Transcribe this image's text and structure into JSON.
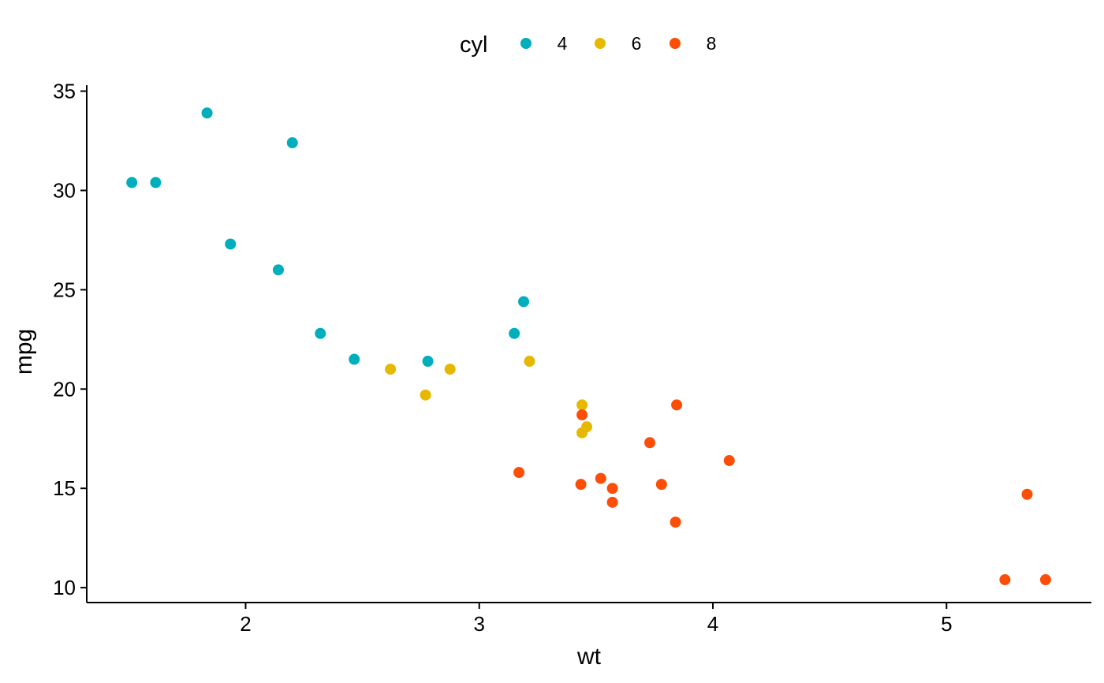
{
  "chart_data": {
    "type": "scatter",
    "xlabel": "wt",
    "ylabel": "mpg",
    "xlim": [
      1.32,
      5.62
    ],
    "ylim": [
      9.25,
      35.3
    ],
    "x_ticks": [
      2,
      3,
      4,
      5
    ],
    "y_ticks": [
      10,
      15,
      20,
      25,
      30,
      35
    ],
    "x_tick_labels": [
      "2",
      "3",
      "4",
      "5"
    ],
    "y_tick_labels": [
      "10",
      "15",
      "20",
      "25",
      "30",
      "35"
    ],
    "grid": false,
    "legend": {
      "title": "cyl",
      "position": "top"
    },
    "series": [
      {
        "name": "4",
        "color": "#00AFBB",
        "points": [
          {
            "x": 2.32,
            "y": 22.8
          },
          {
            "x": 3.19,
            "y": 24.4
          },
          {
            "x": 3.15,
            "y": 22.8
          },
          {
            "x": 2.2,
            "y": 32.4
          },
          {
            "x": 1.615,
            "y": 30.4
          },
          {
            "x": 1.835,
            "y": 33.9
          },
          {
            "x": 2.465,
            "y": 21.5
          },
          {
            "x": 1.935,
            "y": 27.3
          },
          {
            "x": 2.14,
            "y": 26.0
          },
          {
            "x": 1.513,
            "y": 30.4
          },
          {
            "x": 2.78,
            "y": 21.4
          }
        ]
      },
      {
        "name": "6",
        "color": "#E7B800",
        "points": [
          {
            "x": 2.62,
            "y": 21.0
          },
          {
            "x": 2.875,
            "y": 21.0
          },
          {
            "x": 3.215,
            "y": 21.4
          },
          {
            "x": 3.46,
            "y": 18.1
          },
          {
            "x": 3.44,
            "y": 19.2
          },
          {
            "x": 3.44,
            "y": 17.8
          },
          {
            "x": 2.77,
            "y": 19.7
          }
        ]
      },
      {
        "name": "8",
        "color": "#FC4E07",
        "points": [
          {
            "x": 3.44,
            "y": 18.7
          },
          {
            "x": 3.57,
            "y": 14.3
          },
          {
            "x": 4.07,
            "y": 16.4
          },
          {
            "x": 3.73,
            "y": 17.3
          },
          {
            "x": 3.78,
            "y": 15.2
          },
          {
            "x": 5.25,
            "y": 10.4
          },
          {
            "x": 5.424,
            "y": 10.4
          },
          {
            "x": 5.345,
            "y": 14.7
          },
          {
            "x": 3.52,
            "y": 15.5
          },
          {
            "x": 3.435,
            "y": 15.2
          },
          {
            "x": 3.84,
            "y": 13.3
          },
          {
            "x": 3.845,
            "y": 19.2
          },
          {
            "x": 3.17,
            "y": 15.8
          },
          {
            "x": 3.57,
            "y": 15.0
          }
        ]
      }
    ]
  }
}
